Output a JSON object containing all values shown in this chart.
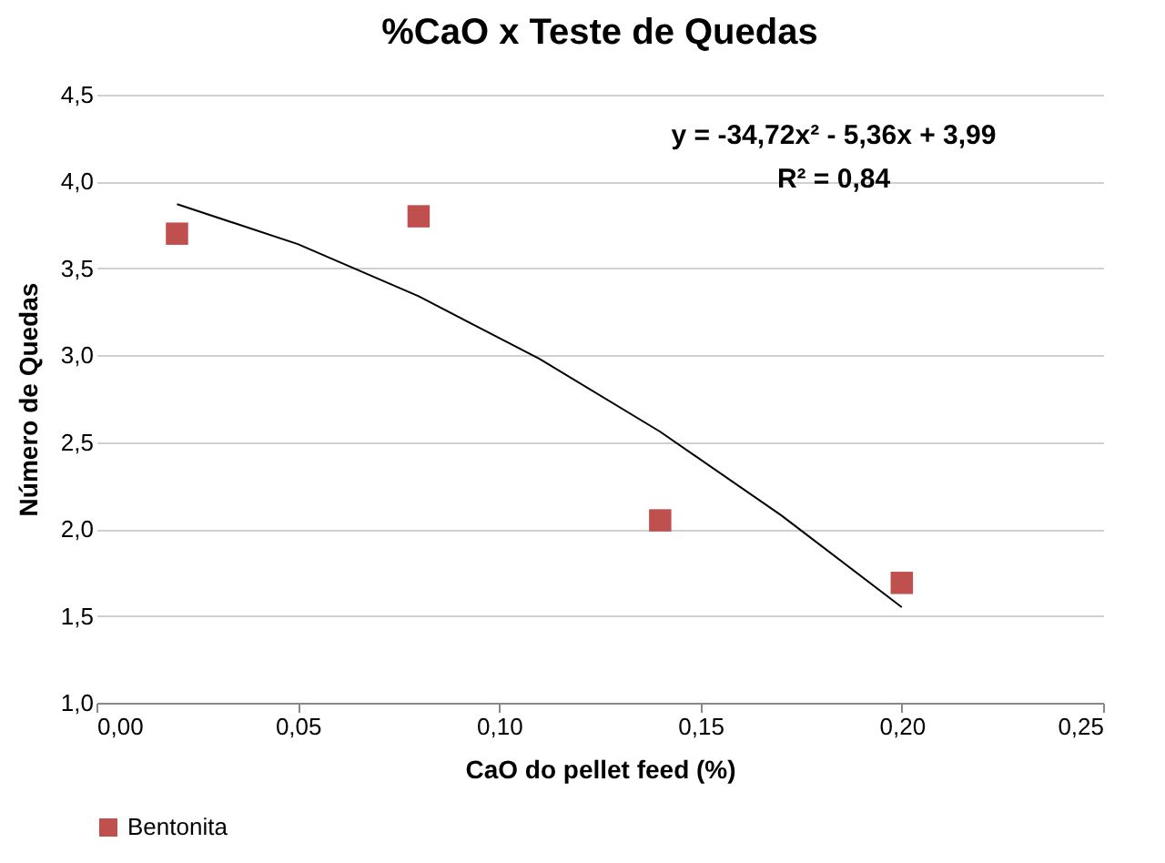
{
  "chart_data": {
    "type": "scatter",
    "title": "%CaO x Teste de Quedas",
    "xlabel": "CaO do pellet feed (%)",
    "ylabel": "Número de Quedas",
    "x": [
      0.02,
      0.08,
      0.14,
      0.2
    ],
    "series": [
      {
        "name": "Bentonita",
        "color": "#c0504d",
        "values": [
          3.7,
          3.8,
          2.05,
          1.69
        ],
        "marker": "square"
      },
      {
        "type": "line",
        "color": "#000000",
        "x": [
          0.02,
          0.05,
          0.08,
          0.11,
          0.14,
          0.17,
          0.2
        ],
        "values": [
          3.87,
          3.64,
          3.34,
          2.98,
          2.56,
          2.08,
          1.55
        ]
      }
    ],
    "xlim": [
      0,
      0.25
    ],
    "xticks": [
      {
        "value": 0,
        "label": "0,00"
      },
      {
        "value": 0.05,
        "label": "0,05"
      },
      {
        "value": 0.1,
        "label": "0,10"
      },
      {
        "value": 0.15,
        "label": "0,15"
      },
      {
        "value": 0.2,
        "label": "0,20"
      },
      {
        "value": 0.25,
        "label": "0,25"
      }
    ],
    "ylim": [
      1,
      4.5
    ],
    "yticks": [
      {
        "value": 1,
        "label": "1,0"
      },
      {
        "value": 1.5,
        "label": "1,5"
      },
      {
        "value": 2,
        "label": "2,0"
      },
      {
        "value": 2.5,
        "label": "2,5"
      },
      {
        "value": 3,
        "label": "3,0"
      },
      {
        "value": 3.5,
        "label": "3,5"
      },
      {
        "value": 4,
        "label": "4,0"
      },
      {
        "value": 4.5,
        "label": "4,5"
      }
    ],
    "grid": "y",
    "legend": "bottom",
    "annotations": [
      "y = -34,72x² - 5,36x + 3,99",
      "R² = 0,84"
    ]
  }
}
